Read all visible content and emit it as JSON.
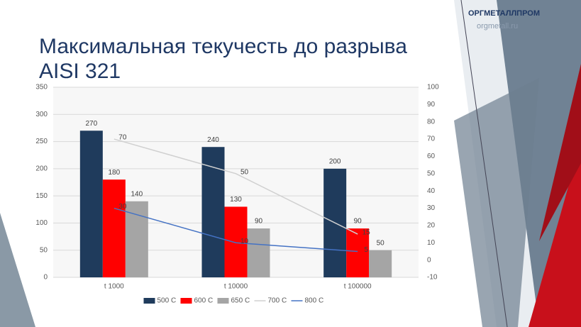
{
  "header": {
    "logo": "ОРГМЕТАЛЛПРОМ",
    "site": "orgmetall.ru",
    "title_line1": "Максимальная текучесть до разрыва",
    "title_line2": "AISI 321"
  },
  "chart_data": {
    "type": "bar",
    "categories": [
      "t 1000",
      "t 10000",
      "t 100000"
    ],
    "series": [
      {
        "name": "500 C",
        "color": "#1f3b5c",
        "type": "bar",
        "values": [
          270,
          240,
          200
        ]
      },
      {
        "name": "600 C",
        "color": "#ff0000",
        "type": "bar",
        "values": [
          180,
          130,
          90
        ]
      },
      {
        "name": "650 C",
        "color": "#a5a5a5",
        "type": "bar",
        "values": [
          140,
          90,
          50
        ]
      },
      {
        "name": "700 C",
        "color": "#d0d0d0",
        "type": "line",
        "axis": "y2",
        "values": [
          70,
          50,
          15
        ]
      },
      {
        "name": "800 C",
        "color": "#4472c4",
        "type": "line",
        "axis": "y2",
        "values": [
          30,
          10,
          5
        ]
      }
    ],
    "ylim": [
      0,
      350
    ],
    "yticks": [
      0,
      50,
      100,
      150,
      200,
      250,
      300,
      350
    ],
    "y2lim": [
      -10,
      100
    ],
    "y2ticks": [
      -10,
      0,
      10,
      20,
      30,
      40,
      50,
      60,
      70,
      80,
      90,
      100
    ],
    "grid": true,
    "legend": "bottom"
  }
}
